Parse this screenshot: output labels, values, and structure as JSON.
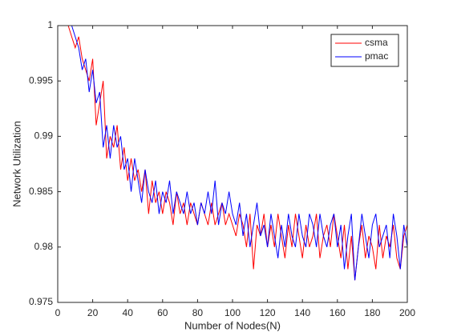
{
  "chart_data": {
    "type": "line",
    "xlabel": "Number of Nodes(N)",
    "ylabel": "Network Utilization",
    "x": [
      2,
      4,
      6,
      8,
      10,
      12,
      14,
      16,
      18,
      20,
      22,
      24,
      26,
      28,
      30,
      32,
      34,
      36,
      38,
      40,
      42,
      44,
      46,
      48,
      50,
      52,
      54,
      56,
      58,
      60,
      62,
      64,
      66,
      68,
      70,
      72,
      74,
      76,
      78,
      80,
      82,
      84,
      86,
      88,
      90,
      92,
      94,
      96,
      98,
      100,
      102,
      104,
      106,
      108,
      110,
      112,
      114,
      116,
      118,
      120,
      122,
      124,
      126,
      128,
      130,
      132,
      134,
      136,
      138,
      140,
      142,
      144,
      146,
      148,
      150,
      152,
      154,
      156,
      158,
      160,
      162,
      164,
      166,
      168,
      170,
      172,
      174,
      176,
      178,
      180,
      182,
      184,
      186,
      188,
      190,
      192,
      194,
      196,
      198,
      200
    ],
    "series": [
      {
        "name": "csma",
        "color": "#ff0000",
        "values": [
          1,
          1,
          1,
          0.999,
          0.998,
          0.999,
          0.997,
          0.996,
          0.995,
          0.997,
          0.991,
          0.993,
          0.995,
          0.988,
          0.99,
          0.989,
          0.991,
          0.987,
          0.989,
          0.986,
          0.988,
          0.986,
          0.987,
          0.985,
          0.987,
          0.983,
          0.986,
          0.984,
          0.985,
          0.983,
          0.985,
          0.984,
          0.982,
          0.985,
          0.983,
          0.984,
          0.982,
          0.984,
          0.983,
          0.982,
          0.984,
          0.983,
          0.982,
          0.984,
          0.982,
          0.983,
          0.984,
          0.982,
          0.983,
          0.982,
          0.981,
          0.983,
          0.982,
          0.98,
          0.983,
          0.978,
          0.982,
          0.981,
          0.983,
          0.98,
          0.982,
          0.98,
          0.983,
          0.981,
          0.979,
          0.982,
          0.98,
          0.983,
          0.981,
          0.979,
          0.982,
          0.98,
          0.981,
          0.983,
          0.979,
          0.981,
          0.982,
          0.98,
          0.983,
          0.981,
          0.979,
          0.982,
          0.978,
          0.981,
          0.977,
          0.98,
          0.982,
          0.979,
          0.981,
          0.98,
          0.978,
          0.982,
          0.979,
          0.981,
          0.98,
          0.982,
          0.979,
          0.978,
          0.981,
          0.982
        ]
      },
      {
        "name": "pmac",
        "color": "#0000ff",
        "values": [
          1,
          1,
          1,
          1,
          0.999,
          0.998,
          0.996,
          0.997,
          0.994,
          0.996,
          0.993,
          0.994,
          0.989,
          0.991,
          0.988,
          0.991,
          0.989,
          0.99,
          0.987,
          0.988,
          0.985,
          0.988,
          0.986,
          0.984,
          0.987,
          0.985,
          0.984,
          0.986,
          0.983,
          0.985,
          0.984,
          0.986,
          0.983,
          0.985,
          0.984,
          0.983,
          0.985,
          0.983,
          0.984,
          0.982,
          0.984,
          0.983,
          0.985,
          0.983,
          0.986,
          0.982,
          0.984,
          0.983,
          0.985,
          0.983,
          0.982,
          0.984,
          0.981,
          0.983,
          0.98,
          0.982,
          0.984,
          0.981,
          0.982,
          0.98,
          0.983,
          0.981,
          0.979,
          0.982,
          0.98,
          0.983,
          0.981,
          0.98,
          0.983,
          0.981,
          0.98,
          0.983,
          0.982,
          0.98,
          0.983,
          0.981,
          0.98,
          0.982,
          0.983,
          0.98,
          0.982,
          0.978,
          0.981,
          0.983,
          0.977,
          0.98,
          0.983,
          0.981,
          0.979,
          0.982,
          0.983,
          0.98,
          0.981,
          0.982,
          0.979,
          0.983,
          0.981,
          0.978,
          0.982,
          0.98
        ]
      }
    ],
    "xlim": [
      0,
      200
    ],
    "xticks": [
      0,
      20,
      40,
      60,
      80,
      100,
      120,
      140,
      160,
      180,
      200
    ],
    "ylim": [
      0.975,
      1
    ],
    "yticks": [
      0.975,
      0.98,
      0.985,
      0.99,
      0.995,
      1
    ],
    "legend": "top-right"
  }
}
